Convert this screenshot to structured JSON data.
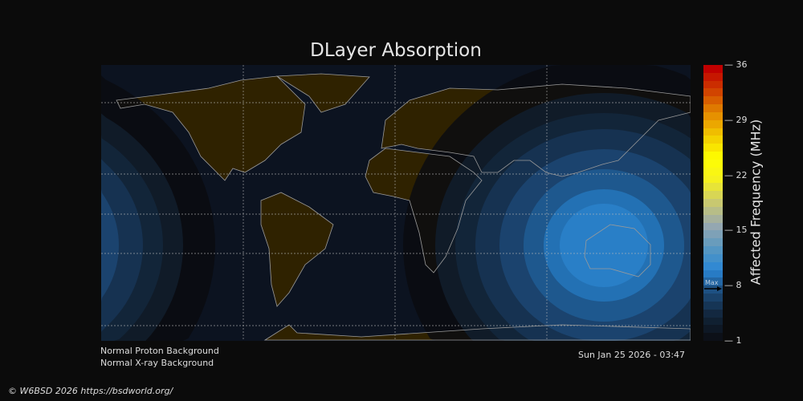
{
  "title": "DLayer Absorption",
  "status": {
    "proton": "Normal Proton Background",
    "xray": "Normal X-ray Background"
  },
  "timestamp": "Sun Jan 25 2026 - 03:47",
  "copyright": "© W6BSD 2026 https://bsdworld.org/",
  "colorbar": {
    "label": "Affected Frequency (MHz)",
    "min": 1,
    "max": 36,
    "ticks": [
      "36",
      "29",
      "22",
      "15",
      "8",
      "1"
    ],
    "max_marker_label": "Max",
    "max_marker_value": 7.5,
    "stops": [
      "#0c1018",
      "#12263c",
      "#1c4a78",
      "#2a86d6",
      "#5a98c0",
      "#98a8b0",
      "#c8c870",
      "#f4f020",
      "#ffff00",
      "#f2c800",
      "#e48a00",
      "#d04000",
      "#c00000"
    ]
  },
  "colors": {
    "ocean": "#0c1320",
    "land": "#2f2200",
    "coast": "#9a9a9a",
    "contours": [
      "#0a0c10",
      "#111c2a",
      "#13263a",
      "#173352",
      "#1b4570",
      "#1f5a8f",
      "#2473b6",
      "#2a80c8"
    ]
  }
}
